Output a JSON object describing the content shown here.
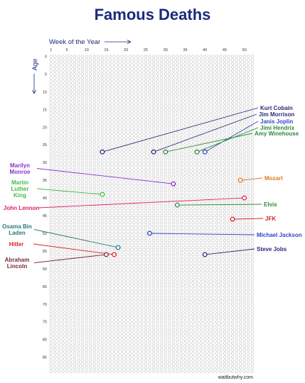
{
  "chart_data": {
    "type": "scatter",
    "title": "Famous Deaths",
    "xlabel": "Week of the Year",
    "ylabel": "Age",
    "x_ticks": [
      1,
      5,
      10,
      15,
      20,
      25,
      30,
      35,
      40,
      45,
      50
    ],
    "y_ticks": [
      0,
      5,
      10,
      15,
      20,
      25,
      30,
      35,
      40,
      45,
      50,
      55,
      60,
      65,
      70,
      75,
      80,
      85
    ],
    "xlim": [
      1,
      52
    ],
    "ylim": [
      0,
      89
    ],
    "grid": true,
    "source": "waitbutwhy.com",
    "points": [
      {
        "name": "Kurt Cobain",
        "week": 14,
        "age": 27,
        "color": "#2a2a7a"
      },
      {
        "name": "Jim Morrison",
        "week": 27,
        "age": 27,
        "color": "#2a2a7a"
      },
      {
        "name": "Janis Joplin",
        "week": 40,
        "age": 27,
        "color": "#3344cc"
      },
      {
        "name": "Jimi Hendrix",
        "week": 38,
        "age": 27,
        "color": "#2e8b3a"
      },
      {
        "name": "Amy Winehouse",
        "week": 30,
        "age": 27,
        "color": "#2e8b3a"
      },
      {
        "name": "Marilyn Monroe",
        "week": 32,
        "age": 36,
        "color": "#8833cc"
      },
      {
        "name": "Mozart",
        "week": 49,
        "age": 35,
        "color": "#e07820"
      },
      {
        "name": "Martin Luther King",
        "week": 14,
        "age": 39,
        "color": "#44bb44"
      },
      {
        "name": "John Lennon",
        "week": 50,
        "age": 40,
        "color": "#dd2266"
      },
      {
        "name": "Elvis",
        "week": 33,
        "age": 42,
        "color": "#2e8b3a"
      },
      {
        "name": "JFK",
        "week": 47,
        "age": 46,
        "color": "#dd2222"
      },
      {
        "name": "Osama Bin Laden",
        "week": 18,
        "age": 54,
        "color": "#2a7a7a"
      },
      {
        "name": "Michael Jackson",
        "week": 26,
        "age": 50,
        "color": "#3344cc"
      },
      {
        "name": "Hitler",
        "week": 17,
        "age": 56,
        "color": "#dd2222"
      },
      {
        "name": "Steve Jobs",
        "week": 40,
        "age": 56,
        "color": "#2a2a7a"
      },
      {
        "name": "Abraham Lincoln",
        "week": 15,
        "age": 56,
        "color": "#7a2a3a"
      }
    ]
  }
}
